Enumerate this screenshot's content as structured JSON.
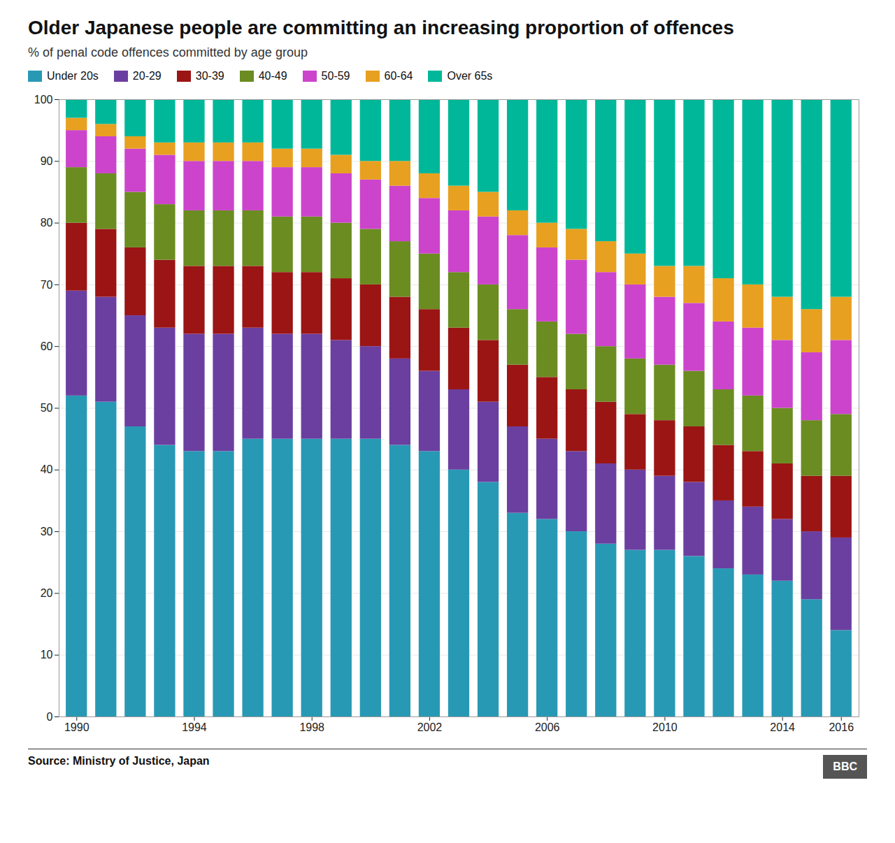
{
  "chart_data": {
    "type": "bar",
    "stacked": true,
    "title": "Older Japanese people are committing an increasing proportion of offences",
    "subtitle": "% of penal code offences committed by age group",
    "source": "Source: Ministry of Justice, Japan",
    "annotations": [
      "BBC"
    ],
    "legend": "top",
    "grid": true,
    "x": [
      1990,
      1991,
      1992,
      1993,
      1994,
      1995,
      1996,
      1997,
      1998,
      1999,
      2000,
      2001,
      2002,
      2003,
      2004,
      2005,
      2006,
      2007,
      2008,
      2009,
      2010,
      2011,
      2012,
      2013,
      2014,
      2015,
      2016
    ],
    "xlim": [
      1989.4,
      2016.6
    ],
    "xticks": [
      1990,
      1994,
      1998,
      2002,
      2006,
      2010,
      2014,
      2016
    ],
    "ylim": [
      0,
      100
    ],
    "yticks": [
      0,
      10,
      20,
      30,
      40,
      50,
      60,
      70,
      80,
      90,
      100
    ],
    "series": [
      {
        "name": "Under 20s",
        "color": "#2899b4",
        "values": [
          52,
          51,
          47,
          44,
          43,
          43,
          45,
          45,
          45,
          45,
          45,
          44,
          43,
          40,
          38,
          33,
          32,
          30,
          28,
          27,
          27,
          26,
          24,
          23,
          22,
          19,
          14
        ]
      },
      {
        "name": "20-29",
        "color": "#6b3fa0",
        "values": [
          17,
          17,
          18,
          19,
          19,
          19,
          18,
          17,
          17,
          16,
          15,
          14,
          13,
          13,
          13,
          14,
          13,
          13,
          13,
          13,
          12,
          12,
          11,
          11,
          10,
          11,
          15
        ]
      },
      {
        "name": "30-39",
        "color": "#9b1515",
        "values": [
          11,
          11,
          11,
          11,
          11,
          11,
          10,
          10,
          10,
          10,
          10,
          10,
          10,
          10,
          10,
          10,
          10,
          10,
          10,
          9,
          9,
          9,
          9,
          9,
          9,
          9,
          10
        ]
      },
      {
        "name": "40-49",
        "color": "#6b8c21",
        "values": [
          9,
          9,
          9,
          9,
          9,
          9,
          9,
          9,
          9,
          9,
          9,
          9,
          9,
          9,
          9,
          9,
          9,
          9,
          9,
          9,
          9,
          9,
          9,
          9,
          9,
          9,
          10
        ]
      },
      {
        "name": "50-59",
        "color": "#cc44cc",
        "values": [
          6,
          6,
          7,
          8,
          8,
          8,
          8,
          8,
          8,
          8,
          8,
          9,
          9,
          10,
          11,
          12,
          12,
          12,
          12,
          12,
          11,
          11,
          11,
          11,
          11,
          11,
          12
        ]
      },
      {
        "name": "60-64",
        "color": "#e8a020",
        "values": [
          2,
          2,
          2,
          2,
          3,
          3,
          3,
          3,
          3,
          3,
          3,
          4,
          4,
          4,
          4,
          4,
          4,
          5,
          5,
          5,
          5,
          6,
          7,
          7,
          7,
          7,
          7
        ]
      },
      {
        "name": "Over 65s",
        "color": "#00b899",
        "values": [
          3,
          4,
          6,
          7,
          7,
          7,
          7,
          8,
          8,
          9,
          10,
          10,
          12,
          14,
          15,
          18,
          20,
          21,
          23,
          25,
          27,
          27,
          29,
          30,
          32,
          34,
          32
        ]
      }
    ]
  }
}
